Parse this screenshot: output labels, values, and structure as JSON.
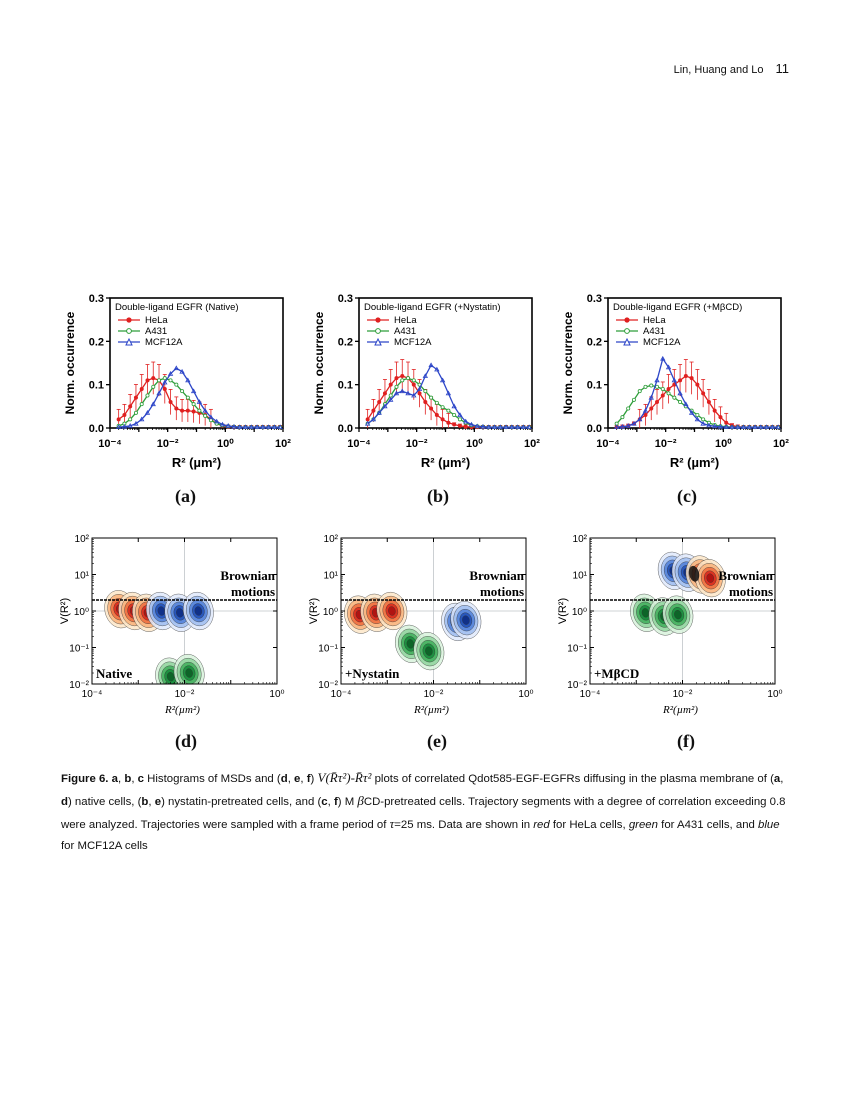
{
  "header": {
    "authors": "Lin, Huang and Lo",
    "page_number": "11"
  },
  "colors": {
    "hela": "#e02020",
    "a431": "#2e9e3a",
    "mcf12a": "#2d46c8"
  },
  "chart_data": [
    {
      "id": "a",
      "type": "line",
      "title": "Double-ligand EGFR (Native)",
      "xlabel": "R² (µm²)",
      "ylabel": "Norm. occurrence",
      "xscale": "log",
      "xlim": [
        0.0001,
        100
      ],
      "ylim": [
        0,
        0.3
      ],
      "x_ticks": [
        "10⁻⁴",
        "10⁻²",
        "10⁰",
        "10²"
      ],
      "y_ticks": [
        "0.0",
        "0.1",
        "0.2",
        "0.3"
      ],
      "x_log": [
        -3.7,
        -3.5,
        -3.3,
        -3.1,
        -2.9,
        -2.7,
        -2.5,
        -2.3,
        -2.1,
        -1.9,
        -1.7,
        -1.5,
        -1.3,
        -1.1,
        -0.9,
        -0.7,
        -0.5,
        -0.3,
        -0.1,
        0.1,
        0.3,
        0.5,
        0.7,
        0.9,
        1.1,
        1.3,
        1.5,
        1.7,
        1.9
      ],
      "series": [
        {
          "name": "HeLa",
          "values": [
            0.02,
            0.03,
            0.05,
            0.07,
            0.09,
            0.11,
            0.115,
            0.11,
            0.09,
            0.06,
            0.045,
            0.04,
            0.04,
            0.038,
            0.035,
            0.03,
            0.02,
            0.01,
            0.005,
            0.003,
            0.002,
            0.002,
            0.002,
            0.002,
            0.002,
            0.002,
            0.002,
            0.002,
            0.002
          ]
        },
        {
          "name": "A431",
          "values": [
            0.005,
            0.01,
            0.02,
            0.035,
            0.055,
            0.075,
            0.095,
            0.11,
            0.115,
            0.11,
            0.1,
            0.085,
            0.07,
            0.055,
            0.04,
            0.028,
            0.018,
            0.01,
            0.006,
            0.004,
            0.003,
            0.002,
            0.002,
            0.002,
            0.002,
            0.002,
            0.002,
            0.002,
            0.002
          ]
        },
        {
          "name": "MCF12A",
          "values": [
            0.002,
            0.003,
            0.005,
            0.01,
            0.02,
            0.035,
            0.055,
            0.08,
            0.105,
            0.125,
            0.138,
            0.13,
            0.11,
            0.085,
            0.06,
            0.04,
            0.025,
            0.015,
            0.008,
            0.005,
            0.003,
            0.002,
            0.002,
            0.002,
            0.002,
            0.002,
            0.002,
            0.002,
            0.002
          ]
        }
      ],
      "panel_label": "(a)"
    },
    {
      "id": "b",
      "type": "line",
      "title": "Double-ligand EGFR (+Nystatin)",
      "xlabel": "R² (µm²)",
      "ylabel": "Norm. occurrence",
      "xscale": "log",
      "xlim": [
        0.0001,
        100
      ],
      "ylim": [
        0,
        0.3
      ],
      "x_ticks": [
        "10⁻⁴",
        "10⁻²",
        "10⁰",
        "10²"
      ],
      "y_ticks": [
        "0.0",
        "0.1",
        "0.2",
        "0.3"
      ],
      "x_log": [
        -3.7,
        -3.5,
        -3.3,
        -3.1,
        -2.9,
        -2.7,
        -2.5,
        -2.3,
        -2.1,
        -1.9,
        -1.7,
        -1.5,
        -1.3,
        -1.1,
        -0.9,
        -0.7,
        -0.5,
        -0.3,
        -0.1,
        0.1,
        0.3,
        0.5,
        0.7,
        0.9,
        1.1,
        1.3,
        1.5,
        1.7,
        1.9
      ],
      "series": [
        {
          "name": "HeLa",
          "values": [
            0.02,
            0.04,
            0.06,
            0.08,
            0.1,
            0.115,
            0.12,
            0.115,
            0.1,
            0.08,
            0.06,
            0.045,
            0.03,
            0.02,
            0.012,
            0.008,
            0.005,
            0.003,
            0.002,
            0.002,
            0.002,
            0.002,
            0.002,
            0.002,
            0.002,
            0.002,
            0.002,
            0.002,
            0.002
          ]
        },
        {
          "name": "A431",
          "values": [
            0.01,
            0.02,
            0.035,
            0.055,
            0.075,
            0.095,
            0.11,
            0.115,
            0.11,
            0.1,
            0.085,
            0.07,
            0.058,
            0.048,
            0.04,
            0.03,
            0.02,
            0.012,
            0.006,
            0.004,
            0.003,
            0.002,
            0.002,
            0.002,
            0.002,
            0.002,
            0.002,
            0.002,
            0.002
          ]
        },
        {
          "name": "MCF12A",
          "values": [
            0.01,
            0.02,
            0.035,
            0.05,
            0.065,
            0.08,
            0.085,
            0.08,
            0.075,
            0.09,
            0.12,
            0.145,
            0.135,
            0.11,
            0.08,
            0.05,
            0.03,
            0.015,
            0.008,
            0.004,
            0.003,
            0.002,
            0.002,
            0.002,
            0.002,
            0.002,
            0.002,
            0.002,
            0.002
          ]
        }
      ],
      "panel_label": "(b)"
    },
    {
      "id": "c",
      "type": "line",
      "title": "Double-ligand EGFR (+MβCD)",
      "xlabel": "R² (µm²)",
      "ylabel": "Norm. occurrence",
      "xscale": "log",
      "xlim": [
        0.0001,
        100
      ],
      "ylim": [
        0,
        0.3
      ],
      "x_ticks": [
        "10⁻⁴",
        "10⁻²",
        "10⁰",
        "10²"
      ],
      "y_ticks": [
        "0.0",
        "0.1",
        "0.2",
        "0.3"
      ],
      "x_log": [
        -3.7,
        -3.5,
        -3.3,
        -3.1,
        -2.9,
        -2.7,
        -2.5,
        -2.3,
        -2.1,
        -1.9,
        -1.7,
        -1.5,
        -1.3,
        -1.1,
        -0.9,
        -0.7,
        -0.5,
        -0.3,
        -0.1,
        0.1,
        0.3,
        0.5,
        0.7,
        0.9,
        1.1,
        1.3,
        1.5,
        1.7,
        1.9
      ],
      "series": [
        {
          "name": "HeLa",
          "values": [
            0.002,
            0.003,
            0.005,
            0.01,
            0.02,
            0.03,
            0.045,
            0.06,
            0.075,
            0.09,
            0.1,
            0.11,
            0.12,
            0.115,
            0.1,
            0.08,
            0.06,
            0.04,
            0.025,
            0.012,
            0.006,
            0.003,
            0.002,
            0.002,
            0.002,
            0.002,
            0.002,
            0.002,
            0.002
          ]
        },
        {
          "name": "A431",
          "values": [
            0.01,
            0.025,
            0.045,
            0.065,
            0.085,
            0.095,
            0.098,
            0.095,
            0.09,
            0.08,
            0.07,
            0.06,
            0.05,
            0.04,
            0.03,
            0.02,
            0.012,
            0.007,
            0.004,
            0.003,
            0.002,
            0.002,
            0.002,
            0.002,
            0.002,
            0.002,
            0.002,
            0.002,
            0.002
          ]
        },
        {
          "name": "MCF12A",
          "values": [
            0.002,
            0.003,
            0.005,
            0.01,
            0.02,
            0.04,
            0.07,
            0.11,
            0.16,
            0.14,
            0.11,
            0.08,
            0.055,
            0.035,
            0.02,
            0.01,
            0.006,
            0.004,
            0.003,
            0.002,
            0.002,
            0.002,
            0.002,
            0.002,
            0.002,
            0.002,
            0.002,
            0.002,
            0.002
          ]
        }
      ],
      "panel_label": "(c)"
    },
    {
      "id": "d",
      "type": "heatmap",
      "xlabel": "R²(µm²)",
      "ylabel": "V(R²)",
      "xscale": "log",
      "yscale": "log",
      "xlim": [
        0.0001,
        1
      ],
      "ylim": [
        0.01,
        100
      ],
      "x_ticks": [
        "10⁻⁴",
        "10⁻²",
        "10⁰"
      ],
      "y_ticks": [
        "10⁻²",
        "10⁻¹",
        "10⁰",
        "10¹",
        "10²"
      ],
      "threshold_label": [
        "Brownian",
        "motions"
      ],
      "condition": "Native",
      "clusters": [
        {
          "cell": "HeLa",
          "centers": [
            [
              -3.4,
              0.05
            ],
            [
              -3.1,
              0.0
            ],
            [
              -2.8,
              -0.05
            ]
          ]
        },
        {
          "cell": "A431",
          "centers": [
            [
              -2.3,
              -1.8
            ],
            [
              -1.9,
              -1.7
            ]
          ]
        },
        {
          "cell": "MCF12A",
          "centers": [
            [
              -2.5,
              0.0
            ],
            [
              -2.1,
              -0.05
            ],
            [
              -1.7,
              0.0
            ]
          ]
        }
      ],
      "panel_label": "(d)"
    },
    {
      "id": "e",
      "type": "heatmap",
      "xlabel": "R²(µm²)",
      "ylabel": "V(R²)",
      "xscale": "log",
      "yscale": "log",
      "xlim": [
        0.0001,
        1
      ],
      "ylim": [
        0.01,
        100
      ],
      "x_ticks": [
        "10⁻⁴",
        "10⁻²",
        "10⁰"
      ],
      "y_ticks": [
        "10⁻²",
        "10⁻¹",
        "10⁰",
        "10¹",
        "10²"
      ],
      "threshold_label": [
        "Brownian",
        "motions"
      ],
      "condition": "+Nystatin",
      "clusters": [
        {
          "cell": "HeLa",
          "centers": [
            [
              -3.6,
              -0.1
            ],
            [
              -3.25,
              -0.05
            ],
            [
              -2.9,
              0.0
            ]
          ]
        },
        {
          "cell": "A431",
          "centers": [
            [
              -2.5,
              -0.9
            ],
            [
              -2.1,
              -1.1
            ]
          ]
        },
        {
          "cell": "MCF12A",
          "centers": [
            [
              -1.5,
              -0.3
            ],
            [
              -1.3,
              -0.25
            ]
          ]
        }
      ],
      "panel_label": "(e)"
    },
    {
      "id": "f",
      "type": "heatmap",
      "xlabel": "R²(µm²)",
      "ylabel": "V(R²)",
      "xscale": "log",
      "yscale": "log",
      "xlim": [
        0.0001,
        1
      ],
      "ylim": [
        0.01,
        100
      ],
      "x_ticks": [
        "10⁻⁴",
        "10⁻²",
        "10⁰"
      ],
      "y_ticks": [
        "10⁻²",
        "10⁻¹",
        "10⁰",
        "10¹",
        "10²"
      ],
      "threshold_label": [
        "Brownian",
        "motions"
      ],
      "condition": "+MβCD",
      "clusters": [
        {
          "cell": "A431",
          "centers": [
            [
              -2.8,
              -0.05
            ],
            [
              -2.4,
              -0.15
            ],
            [
              -2.1,
              -0.1
            ]
          ]
        },
        {
          "cell": "MCF12A",
          "centers": [
            [
              -2.2,
              1.1
            ],
            [
              -1.9,
              1.05
            ]
          ]
        },
        {
          "cell": "HeLa",
          "centers": [
            [
              -1.6,
              1.0
            ],
            [
              -1.4,
              0.9
            ]
          ]
        }
      ],
      "panel_label": "(f)"
    }
  ],
  "caption": {
    "fig_label": "Figure 6.",
    "a": "a",
    "b": "b",
    "c": "c",
    "d": "d",
    "e": "e",
    "f": "f",
    "t1": " Histograms of MSDs and (",
    "t2": ") ",
    "math1": "V(R̄τ²)-R̄τ²",
    "t3": " plots of correlated Qdot585-EGF-EGFRs diffusing in the plasma membrane of (",
    "t4": ") native cells, (",
    "t5": ") nystatin-pretreated cells, and (",
    "t6": ") M ",
    "beta": "β",
    "t7": "CD-pretreated cells. Trajectory segments with a degree of correlation exceeding 0.8 were analyzed. Trajectories were sampled with a frame period of ",
    "tau": "τ",
    "t8": "=25 ms. Data are shown in ",
    "red": "red",
    "t9": " for HeLa cells, ",
    "green": "green",
    "t10": " for A431 cells, and ",
    "blue": "blue",
    "t11": " for MCF12A cells",
    "comma": ", ",
    "comma2": ", "
  }
}
